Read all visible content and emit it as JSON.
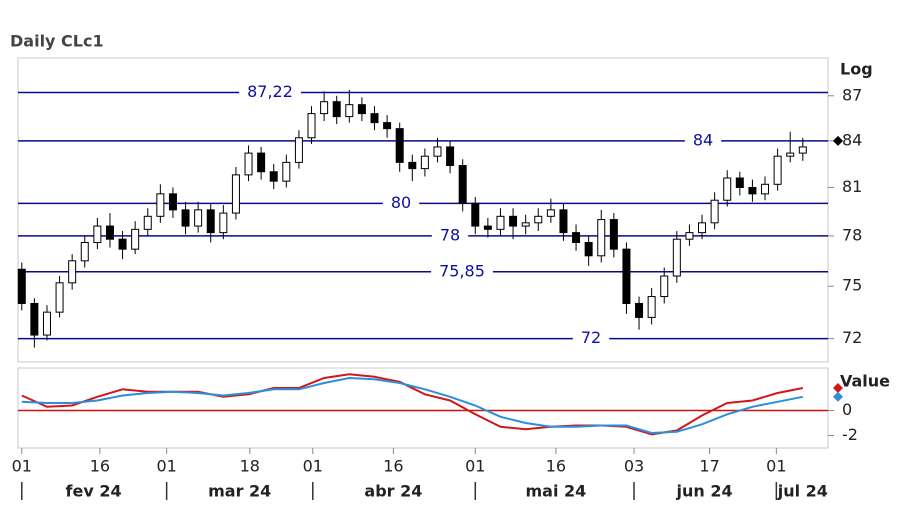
{
  "chart_data": {
    "type": "candlestick",
    "title": "Daily CLc1",
    "scale_label": "Log",
    "log": true,
    "ylim": [
      70.7,
      89.6
    ],
    "yticks": [
      72,
      75,
      78,
      81,
      84,
      87
    ],
    "xlim": [
      -0.3,
      64
    ],
    "xticks": [
      {
        "value": 0,
        "label": "01"
      },
      {
        "value": 6.2,
        "label": "16"
      },
      {
        "value": 11.5,
        "label": "01"
      },
      {
        "value": 18.1,
        "label": "18"
      },
      {
        "value": 23.1,
        "label": "01"
      },
      {
        "value": 29.5,
        "label": "16"
      },
      {
        "value": 36.0,
        "label": "01"
      },
      {
        "value": 42.4,
        "label": "16"
      },
      {
        "value": 48.6,
        "label": "03"
      },
      {
        "value": 54.6,
        "label": "17"
      },
      {
        "value": 59.9,
        "label": "01"
      }
    ],
    "month_ticks": [
      {
        "value": 5.7,
        "label": "fev 24"
      },
      {
        "value": 17.3,
        "label": "mar 24"
      },
      {
        "value": 29.5,
        "label": "abr 24"
      },
      {
        "value": 42.4,
        "label": "mai 24"
      },
      {
        "value": 54.2,
        "label": "jun 24"
      },
      {
        "value": 62.0,
        "label": "jul 24"
      }
    ],
    "levels": {
      "color": "#0a0a8c",
      "values": [
        87.22,
        84,
        80,
        78,
        75.85,
        72
      ],
      "value_labels": [
        "87,22",
        "84",
        "80",
        "78",
        "75,85",
        "72"
      ]
    },
    "last_price": 84,
    "open": [
      76.0,
      74.0,
      72.2,
      73.5,
      75.2,
      76.5,
      77.6,
      78.6,
      77.8,
      77.2,
      78.4,
      79.2,
      80.6,
      79.6,
      78.6,
      79.6,
      78.2,
      79.4,
      81.8,
      83.2,
      82.0,
      81.4,
      82.6,
      84.2,
      85.8,
      86.6,
      85.6,
      86.4,
      85.8,
      85.2,
      84.8,
      82.6,
      82.2,
      83.0,
      83.6,
      82.4,
      80.0,
      78.6,
      78.4,
      79.2,
      78.6,
      78.8,
      79.2,
      79.6,
      78.2,
      77.6,
      76.8,
      79.0,
      77.2,
      74.0,
      73.2,
      74.4,
      75.6,
      77.8,
      78.2,
      78.8,
      80.2,
      81.6,
      81.0,
      80.6,
      81.2,
      83.0,
      83.2
    ],
    "high": [
      76.4,
      74.3,
      73.9,
      75.6,
      76.9,
      78.0,
      79.1,
      79.4,
      78.3,
      78.9,
      79.7,
      81.2,
      81.0,
      80.1,
      80.1,
      80.0,
      79.9,
      82.3,
      83.7,
      83.6,
      82.5,
      83.1,
      84.7,
      86.3,
      87.3,
      87.0,
      87.4,
      86.9,
      86.3,
      85.7,
      85.2,
      83.1,
      83.5,
      84.2,
      84.0,
      82.8,
      80.4,
      79.1,
      79.7,
      79.7,
      79.3,
      79.7,
      80.3,
      80.0,
      78.7,
      78.0,
      79.6,
      79.4,
      77.6,
      74.4,
      74.9,
      76.1,
      78.3,
      78.7,
      79.3,
      80.7,
      82.1,
      82.0,
      81.5,
      81.7,
      83.5,
      84.6,
      84.2
    ],
    "low": [
      73.6,
      71.5,
      71.9,
      73.2,
      74.8,
      76.1,
      77.2,
      77.3,
      76.6,
      76.9,
      78.0,
      78.8,
      79.1,
      78.1,
      78.2,
      77.6,
      77.8,
      79.0,
      81.4,
      81.5,
      80.9,
      81.0,
      82.2,
      83.8,
      85.3,
      85.1,
      85.2,
      85.3,
      84.7,
      84.2,
      82.0,
      81.4,
      81.7,
      82.6,
      81.9,
      79.5,
      78.1,
      77.9,
      78.0,
      77.8,
      78.1,
      78.3,
      78.8,
      77.7,
      77.1,
      76.2,
      76.4,
      76.7,
      73.4,
      72.5,
      72.8,
      74.0,
      75.2,
      77.4,
      77.8,
      78.4,
      79.8,
      80.5,
      80.1,
      80.2,
      80.8,
      82.6,
      82.7
    ],
    "close": [
      74.0,
      72.2,
      73.5,
      75.2,
      76.5,
      77.6,
      78.6,
      77.8,
      77.2,
      78.4,
      79.2,
      80.6,
      79.6,
      78.6,
      79.6,
      78.2,
      79.4,
      81.8,
      83.2,
      82.0,
      81.4,
      82.6,
      84.2,
      85.8,
      86.6,
      85.6,
      86.4,
      85.8,
      85.2,
      84.8,
      82.6,
      82.2,
      83.0,
      83.6,
      82.4,
      80.0,
      78.6,
      78.4,
      79.2,
      78.6,
      78.8,
      79.2,
      79.6,
      78.2,
      77.6,
      76.8,
      79.0,
      77.2,
      74.0,
      73.2,
      74.4,
      75.6,
      77.8,
      78.2,
      78.8,
      80.2,
      81.6,
      81.0,
      80.6,
      81.2,
      83.0,
      83.2,
      83.6
    ],
    "indicator": {
      "label": "Value",
      "ylim": [
        -3,
        3.4
      ],
      "yticks": [
        0,
        -2
      ],
      "zero_color": "#d01010",
      "x": [
        0,
        2,
        4,
        6,
        8,
        10,
        12,
        14,
        16,
        18,
        20,
        22,
        24,
        26,
        28,
        30,
        32,
        34,
        36,
        38,
        40,
        42,
        44,
        46,
        48,
        50,
        52,
        54,
        56,
        58,
        60,
        62
      ],
      "series": [
        {
          "color": "#d01818",
          "values": [
            1.2,
            0.3,
            0.4,
            1.1,
            1.7,
            1.5,
            1.5,
            1.5,
            1.1,
            1.3,
            1.8,
            1.8,
            2.6,
            2.9,
            2.7,
            2.3,
            1.3,
            0.8,
            -0.3,
            -1.3,
            -1.5,
            -1.3,
            -1.2,
            -1.2,
            -1.3,
            -1.9,
            -1.6,
            -0.4,
            0.6,
            0.8,
            1.4,
            1.8
          ]
        },
        {
          "color": "#2a8fdc",
          "values": [
            0.7,
            0.6,
            0.6,
            0.8,
            1.2,
            1.4,
            1.5,
            1.4,
            1.2,
            1.4,
            1.7,
            1.7,
            2.2,
            2.6,
            2.5,
            2.2,
            1.7,
            1.1,
            0.4,
            -0.5,
            -1.0,
            -1.3,
            -1.3,
            -1.2,
            -1.2,
            -1.8,
            -1.7,
            -1.1,
            -0.3,
            0.3,
            0.7,
            1.1
          ]
        }
      ]
    }
  }
}
